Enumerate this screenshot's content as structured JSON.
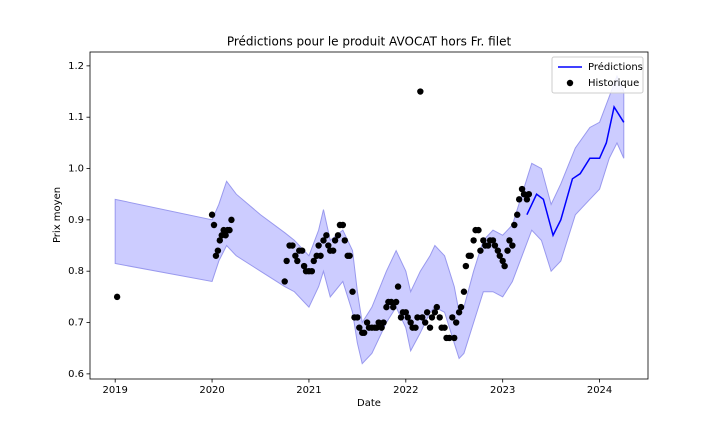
{
  "chart_data": {
    "type": "line",
    "title": "Prédictions pour le produit AVOCAT hors Fr. filet",
    "xlabel": "Date",
    "ylabel": "Prix moyen",
    "xlim": [
      2018.74,
      2024.5
    ],
    "ylim": [
      0.59,
      1.227
    ],
    "xticks": [
      2019,
      2020,
      2021,
      2022,
      2023,
      2024
    ],
    "yticks": [
      0.6,
      0.7,
      0.8,
      0.9,
      {
        "value": 1,
        "label": "1.0"
      },
      1.1,
      1.2
    ],
    "legend": "upper right",
    "band": {
      "color": "#ccccff",
      "x": [
        2019.0,
        2020.0,
        2020.07,
        2020.15,
        2020.25,
        2020.5,
        2020.75,
        2020.85,
        2021.0,
        2021.1,
        2021.15,
        2021.22,
        2021.35,
        2021.45,
        2021.5,
        2021.55,
        2021.65,
        2021.8,
        2021.9,
        2022.0,
        2022.05,
        2022.15,
        2022.25,
        2022.3,
        2022.4,
        2022.5,
        2022.55,
        2022.6,
        2022.7,
        2022.8,
        2022.9,
        2023.0,
        2023.1,
        2023.2,
        2023.3,
        2023.4,
        2023.5,
        2023.6,
        2023.75,
        2023.9,
        2024.0,
        2024.1,
        2024.18,
        2024.25
      ],
      "upper": [
        0.94,
        0.9,
        0.93,
        0.975,
        0.95,
        0.91,
        0.875,
        0.86,
        0.83,
        0.88,
        0.92,
        0.86,
        0.88,
        0.84,
        0.76,
        0.7,
        0.73,
        0.8,
        0.84,
        0.8,
        0.76,
        0.8,
        0.83,
        0.85,
        0.83,
        0.77,
        0.72,
        0.73,
        0.8,
        0.86,
        0.88,
        0.87,
        0.89,
        0.95,
        1.01,
        1.0,
        0.93,
        0.97,
        1.04,
        1.08,
        1.09,
        1.14,
        1.18,
        1.15
      ],
      "lower": [
        0.815,
        0.78,
        0.82,
        0.85,
        0.83,
        0.8,
        0.77,
        0.76,
        0.73,
        0.77,
        0.8,
        0.75,
        0.78,
        0.72,
        0.66,
        0.62,
        0.64,
        0.7,
        0.73,
        0.69,
        0.645,
        0.68,
        0.72,
        0.73,
        0.72,
        0.66,
        0.63,
        0.64,
        0.7,
        0.76,
        0.76,
        0.75,
        0.78,
        0.83,
        0.88,
        0.86,
        0.8,
        0.82,
        0.91,
        0.94,
        0.96,
        1.02,
        1.05,
        1.02
      ]
    },
    "series": [
      {
        "name": "Prédictions",
        "color": "#0000ff",
        "type": "line",
        "x": [
          2023.25,
          2023.35,
          2023.42,
          2023.52,
          2023.6,
          2023.72,
          2023.8,
          2023.9,
          2024.0,
          2024.07,
          2024.15,
          2024.25
        ],
        "values": [
          0.91,
          0.95,
          0.94,
          0.87,
          0.9,
          0.98,
          0.99,
          1.02,
          1.02,
          1.05,
          1.12,
          1.09
        ]
      },
      {
        "name": "Historique",
        "color": "#000000",
        "type": "scatter",
        "x": [
          2019.02,
          2020.0,
          2020.02,
          2020.04,
          2020.06,
          2020.08,
          2020.1,
          2020.12,
          2020.14,
          2020.16,
          2020.18,
          2020.2,
          2020.75,
          2020.77,
          2020.8,
          2020.83,
          2020.86,
          2020.88,
          2020.9,
          2020.93,
          2020.95,
          2020.97,
          2021.0,
          2021.03,
          2021.05,
          2021.08,
          2021.1,
          2021.12,
          2021.15,
          2021.18,
          2021.2,
          2021.22,
          2021.25,
          2021.27,
          2021.3,
          2021.32,
          2021.35,
          2021.37,
          2021.4,
          2021.42,
          2021.45,
          2021.47,
          2021.5,
          2021.52,
          2021.55,
          2021.57,
          2021.6,
          2021.62,
          2021.65,
          2021.68,
          2021.7,
          2021.72,
          2021.75,
          2021.77,
          2021.8,
          2021.82,
          2021.85,
          2021.87,
          2021.9,
          2021.92,
          2021.95,
          2021.97,
          2022.0,
          2022.02,
          2022.05,
          2022.07,
          2022.1,
          2022.12,
          2022.15,
          2022.17,
          2022.2,
          2022.22,
          2022.25,
          2022.27,
          2022.3,
          2022.32,
          2022.35,
          2022.37,
          2022.4,
          2022.42,
          2022.45,
          2022.48,
          2022.5,
          2022.52,
          2022.55,
          2022.57,
          2022.6,
          2022.62,
          2022.65,
          2022.67,
          2022.7,
          2022.72,
          2022.75,
          2022.77,
          2022.8,
          2022.82,
          2022.85,
          2022.87,
          2022.9,
          2022.92,
          2022.95,
          2022.97,
          2023.0,
          2023.02,
          2023.05,
          2023.07,
          2023.1,
          2023.12,
          2023.15,
          2023.17,
          2023.2,
          2023.22,
          2023.25,
          2023.27
        ],
        "values": [
          0.75,
          0.91,
          0.89,
          0.83,
          0.84,
          0.86,
          0.87,
          0.88,
          0.87,
          0.88,
          0.88,
          0.9,
          0.78,
          0.82,
          0.85,
          0.85,
          0.83,
          0.82,
          0.84,
          0.84,
          0.81,
          0.8,
          0.8,
          0.8,
          0.82,
          0.83,
          0.85,
          0.83,
          0.86,
          0.87,
          0.85,
          0.84,
          0.84,
          0.86,
          0.87,
          0.89,
          0.89,
          0.86,
          0.83,
          0.83,
          0.76,
          0.71,
          0.71,
          0.69,
          0.68,
          0.68,
          0.7,
          0.69,
          0.69,
          0.69,
          0.69,
          0.7,
          0.69,
          0.7,
          0.73,
          0.74,
          0.74,
          0.73,
          0.74,
          0.77,
          0.71,
          0.72,
          0.72,
          0.71,
          0.7,
          0.69,
          0.69,
          0.71,
          1.15,
          0.71,
          0.7,
          0.72,
          0.69,
          0.71,
          0.72,
          0.73,
          0.71,
          0.69,
          0.69,
          0.67,
          0.67,
          0.71,
          0.67,
          0.7,
          0.72,
          0.73,
          0.76,
          0.81,
          0.83,
          0.83,
          0.86,
          0.88,
          0.88,
          0.84,
          0.86,
          0.85,
          0.85,
          0.86,
          0.86,
          0.85,
          0.84,
          0.83,
          0.82,
          0.81,
          0.84,
          0.86,
          0.85,
          0.89,
          0.91,
          0.94,
          0.96,
          0.95,
          0.94,
          0.95
        ]
      }
    ]
  }
}
